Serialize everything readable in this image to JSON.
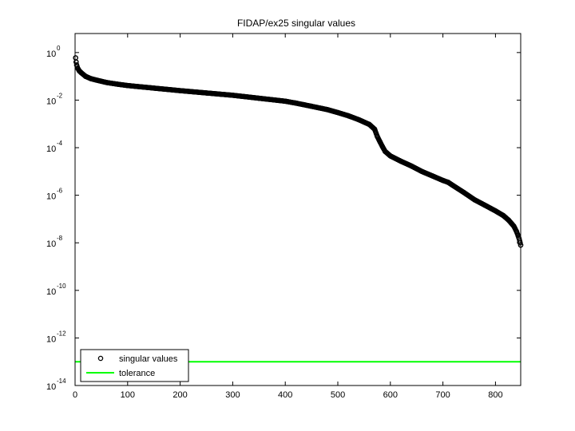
{
  "chart_data": {
    "type": "scatter",
    "title": "FIDAP/ex25 singular values",
    "xlabel": "",
    "ylabel": "",
    "xlim": [
      0,
      848
    ],
    "ylim_log10": [
      -14,
      0.8
    ],
    "yscale": "log",
    "grid": false,
    "legend_position": "bottom-left",
    "x_ticks": [
      "0",
      "100",
      "200",
      "300",
      "400",
      "500",
      "600",
      "700",
      "800"
    ],
    "y_ticks": [
      {
        "base": "10",
        "exp": "0"
      },
      {
        "base": "10",
        "exp": "-2"
      },
      {
        "base": "10",
        "exp": "-4"
      },
      {
        "base": "10",
        "exp": "-6"
      },
      {
        "base": "10",
        "exp": "-8"
      },
      {
        "base": "10",
        "exp": "-10"
      },
      {
        "base": "10",
        "exp": "-12"
      },
      {
        "base": "10",
        "exp": "-14"
      }
    ],
    "series": [
      {
        "name": "singular values",
        "style": "markers",
        "marker": "circle",
        "color": "#000000",
        "x": [
          1,
          2,
          3,
          5,
          8,
          12,
          20,
          30,
          40,
          60,
          80,
          100,
          150,
          200,
          250,
          300,
          350,
          400,
          420,
          450,
          480,
          500,
          520,
          540,
          560,
          570,
          575,
          580,
          585,
          590,
          600,
          620,
          640,
          660,
          680,
          700,
          710,
          720,
          740,
          760,
          780,
          800,
          815,
          825,
          835,
          840,
          843,
          845,
          846,
          847,
          848
        ],
        "y": [
          0.6,
          0.4,
          0.3,
          0.22,
          0.17,
          0.14,
          0.1,
          0.08,
          0.07,
          0.055,
          0.047,
          0.041,
          0.032,
          0.025,
          0.02,
          0.016,
          0.012,
          0.009,
          0.0075,
          0.0055,
          0.004,
          0.003,
          0.0022,
          0.0015,
          0.00095,
          0.0006,
          0.0003,
          0.00018,
          0.00011,
          7e-05,
          4.5e-05,
          2.7e-05,
          1.7e-05,
          1e-05,
          6.5e-06,
          4.2e-06,
          3.5e-06,
          2.5e-06,
          1.3e-06,
          6.5e-07,
          3.8e-07,
          2.2e-07,
          1.4e-07,
          9e-08,
          5e-08,
          3e-08,
          2e-08,
          1.5e-08,
          1.2e-08,
          1e-08,
          8e-09
        ]
      },
      {
        "name": "tolerance",
        "style": "line",
        "color": "#00ff00",
        "x": [
          0,
          848
        ],
        "y": [
          1e-13,
          1e-13
        ]
      }
    ]
  }
}
